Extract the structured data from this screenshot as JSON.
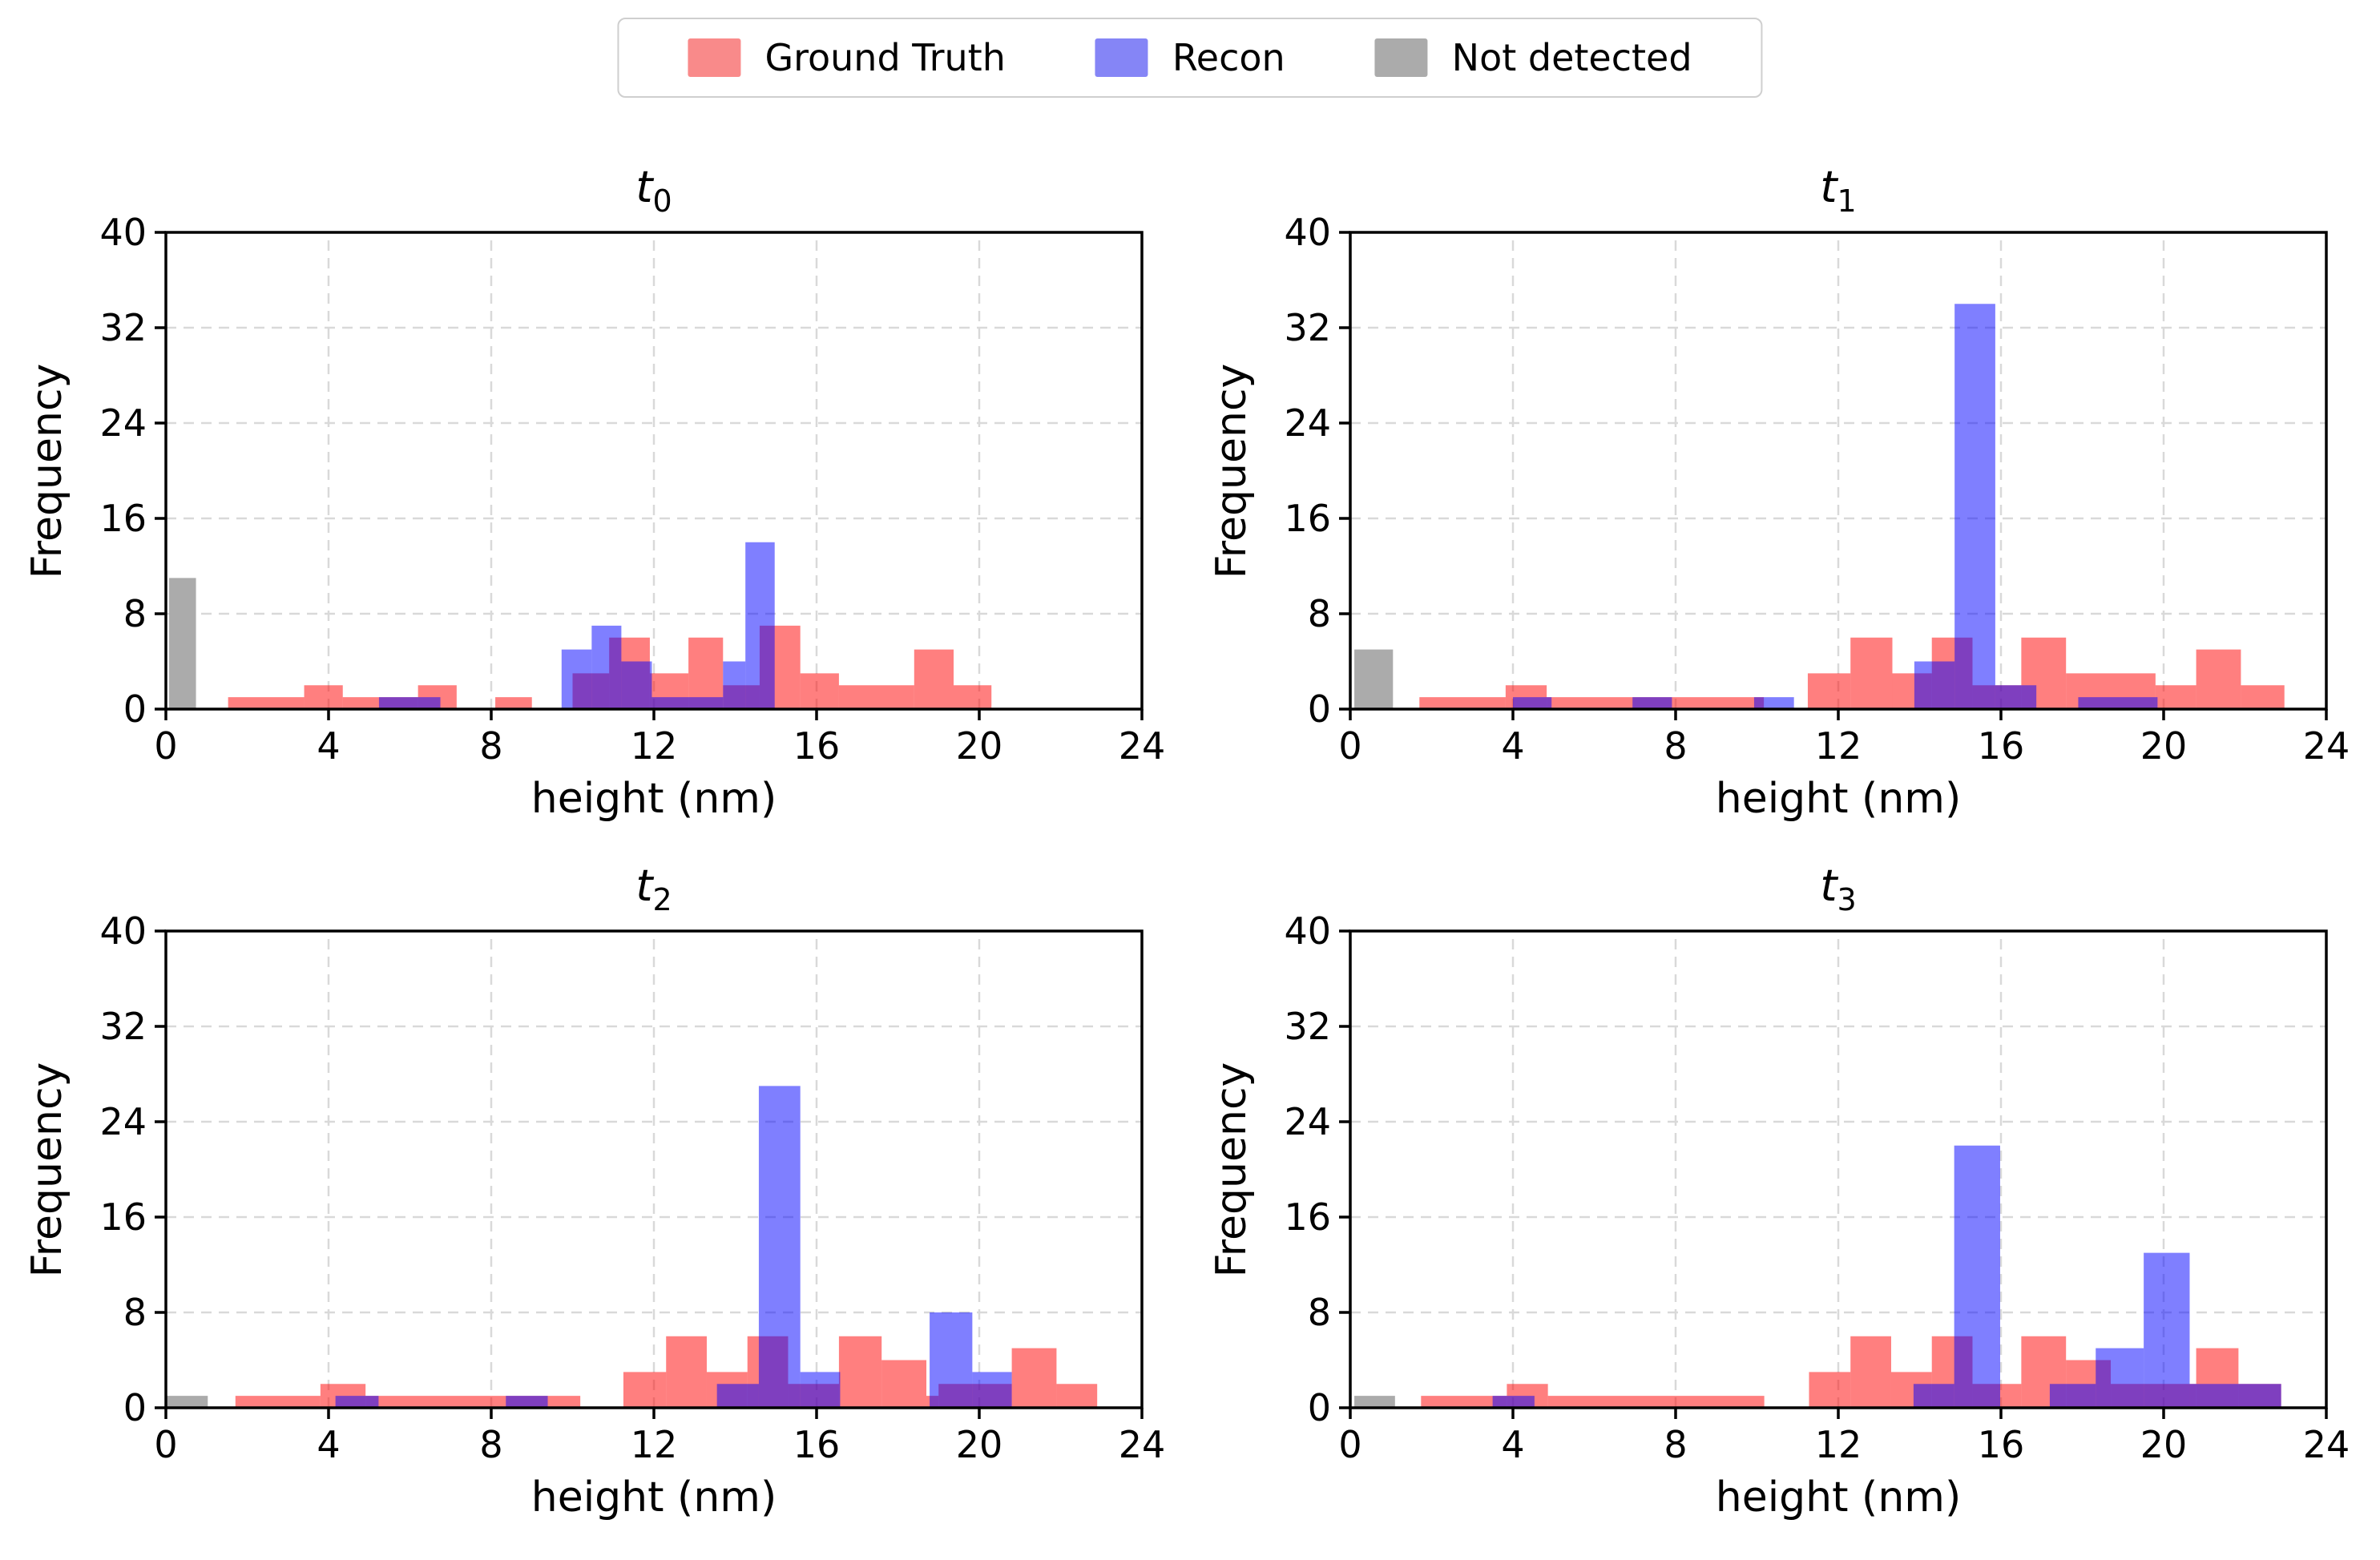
{
  "legend": {
    "items": [
      {
        "key": "ground_truth",
        "label": "Ground Truth",
        "color": "#f98a8a"
      },
      {
        "key": "recon",
        "label": "Recon",
        "color": "#8585f6"
      },
      {
        "key": "not_detected",
        "label": "Not detected",
        "color": "#ababab"
      }
    ]
  },
  "axes": {
    "xlabel": "height (nm)",
    "ylabel": "Frequency",
    "xlim": [
      0,
      24
    ],
    "ylim": [
      0,
      40
    ],
    "xticks": [
      0,
      4,
      8,
      12,
      16,
      20,
      24
    ],
    "yticks": [
      0,
      8,
      16,
      24,
      32,
      40
    ],
    "grid": "dashed",
    "grid_color": "#d9d9d9"
  },
  "colors": {
    "ground_truth": {
      "fill": "#ff0000",
      "opacity": 0.5
    },
    "recon": {
      "fill": "#0000ff",
      "opacity": 0.5
    },
    "not_detected": {
      "fill": "#ababab",
      "opacity": 1.0
    },
    "overlap_appearance": "#8040bf"
  },
  "chart_data": [
    {
      "type": "histogram",
      "title_base": "t",
      "title_sub": "0",
      "xlabel": "height (nm)",
      "ylabel": "Frequency",
      "series": [
        {
          "key": "not_detected",
          "name": "Not detected",
          "bars": [
            [
              0.08,
              0.74,
              11
            ]
          ]
        },
        {
          "key": "ground_truth",
          "name": "Ground Truth",
          "bars": [
            [
              1.53,
              3.4,
              1
            ],
            [
              3.4,
              4.35,
              2
            ],
            [
              4.35,
              6.2,
              1
            ],
            [
              6.2,
              7.15,
              2
            ],
            [
              8.1,
              9.0,
              1
            ],
            [
              10.0,
              10.9,
              3
            ],
            [
              10.9,
              11.9,
              6
            ],
            [
              11.9,
              12.85,
              3
            ],
            [
              12.85,
              13.7,
              6
            ],
            [
              13.7,
              14.6,
              2
            ],
            [
              14.6,
              15.6,
              7
            ],
            [
              15.6,
              16.55,
              3
            ],
            [
              16.55,
              18.4,
              2
            ],
            [
              18.4,
              19.37,
              5
            ],
            [
              19.37,
              20.3,
              2
            ]
          ]
        },
        {
          "key": "recon",
          "name": "Recon",
          "bars": [
            [
              5.24,
              6.75,
              1
            ],
            [
              9.73,
              10.47,
              5
            ],
            [
              10.47,
              11.2,
              7
            ],
            [
              11.2,
              11.95,
              4
            ],
            [
              11.95,
              13.7,
              1
            ],
            [
              13.7,
              14.25,
              4
            ],
            [
              14.25,
              14.97,
              14
            ]
          ]
        }
      ]
    },
    {
      "type": "histogram",
      "title_base": "t",
      "title_sub": "1",
      "xlabel": "height (nm)",
      "ylabel": "Frequency",
      "series": [
        {
          "key": "not_detected",
          "name": "Not detected",
          "bars": [
            [
              0.1,
              1.05,
              5
            ]
          ]
        },
        {
          "key": "ground_truth",
          "name": "Ground Truth",
          "bars": [
            [
              1.7,
              3.82,
              1
            ],
            [
              3.82,
              4.83,
              2
            ],
            [
              4.83,
              10.17,
              1
            ],
            [
              11.25,
              12.3,
              3
            ],
            [
              12.3,
              13.33,
              6
            ],
            [
              13.33,
              14.3,
              3
            ],
            [
              14.3,
              15.3,
              6
            ],
            [
              15.3,
              16.5,
              2
            ],
            [
              16.5,
              17.6,
              6
            ],
            [
              17.6,
              19.8,
              3
            ],
            [
              19.8,
              20.8,
              2
            ],
            [
              20.8,
              21.9,
              5
            ],
            [
              21.9,
              22.97,
              2
            ]
          ]
        },
        {
          "key": "recon",
          "name": "Recon",
          "bars": [
            [
              4.0,
              4.95,
              1
            ],
            [
              6.94,
              7.91,
              1
            ],
            [
              9.93,
              10.91,
              1
            ],
            [
              13.87,
              14.86,
              4
            ],
            [
              14.86,
              15.86,
              34
            ],
            [
              15.86,
              16.87,
              2
            ],
            [
              17.9,
              19.85,
              1
            ]
          ]
        }
      ]
    },
    {
      "type": "histogram",
      "title_base": "t",
      "title_sub": "2",
      "xlabel": "height (nm)",
      "ylabel": "Frequency",
      "series": [
        {
          "key": "not_detected",
          "name": "Not detected",
          "bars": [
            [
              0.02,
              1.03,
              1
            ]
          ]
        },
        {
          "key": "ground_truth",
          "name": "Ground Truth",
          "bars": [
            [
              1.71,
              3.8,
              1
            ],
            [
              3.8,
              4.91,
              2
            ],
            [
              4.91,
              10.19,
              1
            ],
            [
              11.25,
              12.3,
              3
            ],
            [
              12.3,
              13.3,
              6
            ],
            [
              13.3,
              14.3,
              3
            ],
            [
              14.3,
              15.3,
              6
            ],
            [
              15.3,
              16.55,
              2
            ],
            [
              16.55,
              17.6,
              6
            ],
            [
              17.6,
              18.7,
              4
            ],
            [
              18.7,
              19.0,
              1
            ],
            [
              19.0,
              20.8,
              2
            ],
            [
              20.8,
              21.9,
              5
            ],
            [
              21.9,
              22.9,
              2
            ]
          ]
        },
        {
          "key": "recon",
          "name": "Recon",
          "bars": [
            [
              4.17,
              5.23,
              1
            ],
            [
              8.36,
              9.39,
              1
            ],
            [
              13.55,
              14.58,
              2
            ],
            [
              14.58,
              15.6,
              27
            ],
            [
              15.6,
              16.58,
              3
            ],
            [
              18.78,
              19.83,
              8
            ],
            [
              19.83,
              20.8,
              3
            ]
          ]
        }
      ]
    },
    {
      "type": "histogram",
      "title_base": "t",
      "title_sub": "3",
      "xlabel": "height (nm)",
      "ylabel": "Frequency",
      "series": [
        {
          "key": "not_detected",
          "name": "Not detected",
          "bars": [
            [
              0.1,
              1.1,
              1
            ]
          ]
        },
        {
          "key": "ground_truth",
          "name": "Ground Truth",
          "bars": [
            [
              1.74,
              3.85,
              1
            ],
            [
              3.85,
              4.86,
              2
            ],
            [
              4.86,
              10.18,
              1
            ],
            [
              11.28,
              12.3,
              3
            ],
            [
              12.3,
              13.3,
              6
            ],
            [
              13.3,
              14.3,
              3
            ],
            [
              14.3,
              15.3,
              6
            ],
            [
              15.3,
              16.5,
              2
            ],
            [
              16.5,
              17.6,
              6
            ],
            [
              17.6,
              18.7,
              4
            ],
            [
              18.7,
              20.8,
              2
            ],
            [
              20.8,
              21.84,
              5
            ],
            [
              21.84,
              22.89,
              2
            ]
          ]
        },
        {
          "key": "recon",
          "name": "Recon",
          "bars": [
            [
              3.5,
              4.53,
              1
            ],
            [
              13.85,
              14.85,
              2
            ],
            [
              14.85,
              15.98,
              22
            ],
            [
              17.2,
              18.33,
              2
            ],
            [
              18.33,
              19.51,
              5
            ],
            [
              19.51,
              20.64,
              13
            ],
            [
              20.64,
              22.89,
              2
            ]
          ]
        }
      ]
    }
  ]
}
